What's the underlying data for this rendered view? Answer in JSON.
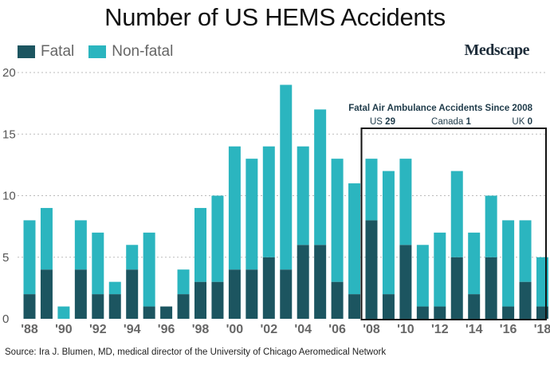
{
  "chart_data": {
    "type": "bar",
    "stacked": true,
    "title": "Number of US HEMS Accidents",
    "xlabel": "",
    "ylabel": "",
    "ylim": [
      0,
      20
    ],
    "yticks": [
      0,
      5,
      10,
      15,
      20
    ],
    "categories": [
      "1988",
      "1989",
      "1990",
      "1991",
      "1992",
      "1993",
      "1994",
      "1995",
      "1996",
      "1997",
      "1998",
      "1999",
      "2000",
      "2001",
      "2002",
      "2003",
      "2004",
      "2005",
      "2006",
      "2007",
      "2008",
      "2009",
      "2010",
      "2011",
      "2012",
      "2013",
      "2014",
      "2015",
      "2016",
      "2017",
      "2018"
    ],
    "tick_labels": [
      "'88",
      "'90",
      "'92",
      "'94",
      "'96",
      "'98",
      "'00",
      "'02",
      "'04",
      "'06",
      "'08",
      "'10",
      "'12",
      "'14",
      "'16",
      "'18"
    ],
    "series": [
      {
        "name": "Fatal",
        "color": "#1c5560",
        "values": [
          2,
          4,
          0,
          4,
          2,
          2,
          4,
          1,
          1,
          2,
          3,
          3,
          4,
          4,
          5,
          4,
          6,
          6,
          3,
          2,
          8,
          2,
          6,
          1,
          1,
          5,
          2,
          5,
          1,
          3,
          1
        ]
      },
      {
        "name": "Non-fatal",
        "color": "#2bb5bf",
        "values": [
          6,
          5,
          1,
          4,
          5,
          1,
          2,
          6,
          0,
          2,
          6,
          7,
          10,
          9,
          9,
          15,
          8,
          11,
          10,
          9,
          5,
          10,
          7,
          5,
          6,
          7,
          5,
          5,
          7,
          5,
          4
        ]
      }
    ],
    "grid": true,
    "legend": "top-left",
    "annotation": {
      "title": "Fatal Air Ambulance Accidents Since 2008",
      "items": [
        {
          "label": "US",
          "value": "29"
        },
        {
          "label": "Canada",
          "value": "1"
        },
        {
          "label": "UK",
          "value": "0"
        }
      ]
    }
  },
  "brand": "Medscape",
  "source": "Source:  Ira J. Blumen, MD, medical director of the University of Chicago Aeromedical Network"
}
